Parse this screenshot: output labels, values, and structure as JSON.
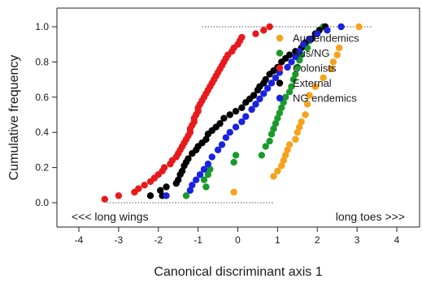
{
  "chart_data": {
    "type": "scatter",
    "title": "",
    "xlabel": "Canonical discriminant axis 1",
    "ylabel": "Cumulative frequency",
    "xlim": [
      -4,
      4
    ],
    "ylim": [
      0,
      1.0
    ],
    "xticks": [
      "-4",
      "-3",
      "-2",
      "-1",
      "0",
      "1",
      "2",
      "3",
      "4"
    ],
    "yticks": [
      "0.0",
      "0.2",
      "0.4",
      "0.6",
      "0.8",
      "1.0"
    ],
    "grid": false,
    "legend_position": "top-right",
    "annotations": {
      "left": "<<< long wings",
      "right": "long toes >>>"
    },
    "reference_lines": [
      {
        "y": 0.0,
        "x_start": -3.3,
        "x_end": 0.9
      },
      {
        "y": 1.0,
        "x_start": -0.9,
        "x_end": 3.4
      }
    ],
    "series": [
      {
        "name": "Aus endemics",
        "color": "#f7a21b",
        "points": [
          [
            -0.1,
            0.06
          ],
          [
            0.9,
            0.15
          ],
          [
            1.0,
            0.18
          ],
          [
            1.1,
            0.21
          ],
          [
            1.15,
            0.24
          ],
          [
            1.2,
            0.27
          ],
          [
            1.25,
            0.3
          ],
          [
            1.3,
            0.33
          ],
          [
            1.45,
            0.36
          ],
          [
            1.5,
            0.4
          ],
          [
            1.55,
            0.43
          ],
          [
            1.6,
            0.46
          ],
          [
            1.7,
            0.5
          ],
          [
            1.75,
            0.56
          ],
          [
            1.8,
            0.61
          ],
          [
            1.95,
            0.66
          ],
          [
            2.15,
            0.71
          ],
          [
            2.35,
            0.76
          ],
          [
            2.4,
            0.8
          ],
          [
            2.5,
            0.84
          ],
          [
            2.55,
            0.88
          ],
          [
            3.05,
            1.0
          ]
        ]
      },
      {
        "name": "Aus/NG",
        "color": "#1a9a2a",
        "points": [
          [
            -1.3,
            0.04
          ],
          [
            -0.8,
            0.09
          ],
          [
            -0.85,
            0.13
          ],
          [
            -0.75,
            0.16
          ],
          [
            -0.7,
            0.19
          ],
          [
            -0.1,
            0.23
          ],
          [
            -0.05,
            0.27
          ],
          [
            0.6,
            0.27
          ],
          [
            0.7,
            0.32
          ],
          [
            0.8,
            0.35
          ],
          [
            0.85,
            0.39
          ],
          [
            0.9,
            0.42
          ],
          [
            0.95,
            0.45
          ],
          [
            1.0,
            0.48
          ],
          [
            1.05,
            0.51
          ],
          [
            1.1,
            0.54
          ],
          [
            1.15,
            0.57
          ],
          [
            1.2,
            0.6
          ],
          [
            1.3,
            0.63
          ],
          [
            1.35,
            0.66
          ],
          [
            1.4,
            0.7
          ],
          [
            1.45,
            0.73
          ],
          [
            1.5,
            0.77
          ],
          [
            1.55,
            0.81
          ],
          [
            1.6,
            0.84
          ],
          [
            1.75,
            0.88
          ],
          [
            1.8,
            0.92
          ],
          [
            1.95,
            0.96
          ],
          [
            2.15,
            1.0
          ]
        ]
      },
      {
        "name": "Colonists",
        "color": "#e8191c",
        "points": [
          [
            -3.35,
            0.02
          ],
          [
            -3.0,
            0.04
          ],
          [
            -2.6,
            0.06
          ],
          [
            -2.5,
            0.08
          ],
          [
            -2.35,
            0.1
          ],
          [
            -2.2,
            0.12
          ],
          [
            -2.1,
            0.14
          ],
          [
            -2.0,
            0.16
          ],
          [
            -1.9,
            0.18
          ],
          [
            -1.85,
            0.2
          ],
          [
            -1.7,
            0.22
          ],
          [
            -1.65,
            0.24
          ],
          [
            -1.55,
            0.26
          ],
          [
            -1.5,
            0.28
          ],
          [
            -1.45,
            0.3
          ],
          [
            -1.4,
            0.32
          ],
          [
            -1.35,
            0.34
          ],
          [
            -1.3,
            0.36
          ],
          [
            -1.25,
            0.38
          ],
          [
            -1.2,
            0.4
          ],
          [
            -1.2,
            0.42
          ],
          [
            -1.15,
            0.44
          ],
          [
            -1.1,
            0.46
          ],
          [
            -1.1,
            0.48
          ],
          [
            -1.05,
            0.5
          ],
          [
            -1.0,
            0.52
          ],
          [
            -1.0,
            0.54
          ],
          [
            -0.95,
            0.56
          ],
          [
            -0.9,
            0.58
          ],
          [
            -0.85,
            0.6
          ],
          [
            -0.8,
            0.62
          ],
          [
            -0.75,
            0.64
          ],
          [
            -0.7,
            0.66
          ],
          [
            -0.65,
            0.68
          ],
          [
            -0.6,
            0.7
          ],
          [
            -0.55,
            0.72
          ],
          [
            -0.5,
            0.74
          ],
          [
            -0.45,
            0.76
          ],
          [
            -0.4,
            0.78
          ],
          [
            -0.35,
            0.8
          ],
          [
            -0.3,
            0.82
          ],
          [
            -0.25,
            0.84
          ],
          [
            -0.15,
            0.86
          ],
          [
            -0.1,
            0.88
          ],
          [
            0.0,
            0.9
          ],
          [
            0.05,
            0.92
          ],
          [
            0.1,
            0.94
          ],
          [
            0.45,
            0.96
          ],
          [
            0.65,
            0.98
          ],
          [
            0.8,
            1.0
          ]
        ]
      },
      {
        "name": "External",
        "color": "#000000",
        "points": [
          [
            -2.2,
            0.04
          ],
          [
            -1.95,
            0.07
          ],
          [
            -1.9,
            0.04
          ],
          [
            -1.8,
            0.09
          ],
          [
            -1.55,
            0.11
          ],
          [
            -1.5,
            0.13
          ],
          [
            -1.45,
            0.16
          ],
          [
            -1.4,
            0.18
          ],
          [
            -1.35,
            0.21
          ],
          [
            -1.3,
            0.23
          ],
          [
            -1.25,
            0.25
          ],
          [
            -1.15,
            0.28
          ],
          [
            -1.05,
            0.3
          ],
          [
            -1.0,
            0.32
          ],
          [
            -0.9,
            0.34
          ],
          [
            -0.8,
            0.36
          ],
          [
            -0.75,
            0.39
          ],
          [
            -0.65,
            0.41
          ],
          [
            -0.55,
            0.43
          ],
          [
            -0.45,
            0.45
          ],
          [
            -0.35,
            0.48
          ],
          [
            -0.2,
            0.5
          ],
          [
            -0.05,
            0.52
          ],
          [
            0.1,
            0.54
          ],
          [
            0.2,
            0.57
          ],
          [
            0.3,
            0.59
          ],
          [
            0.4,
            0.61
          ],
          [
            0.5,
            0.64
          ],
          [
            0.55,
            0.66
          ],
          [
            0.65,
            0.68
          ],
          [
            0.7,
            0.7
          ],
          [
            0.8,
            0.73
          ],
          [
            0.9,
            0.75
          ],
          [
            1.0,
            0.77
          ],
          [
            1.1,
            0.8
          ],
          [
            1.2,
            0.82
          ],
          [
            1.3,
            0.84
          ],
          [
            1.45,
            0.86
          ],
          [
            1.6,
            0.88
          ],
          [
            1.7,
            0.91
          ],
          [
            1.85,
            0.93
          ],
          [
            1.95,
            0.96
          ],
          [
            2.05,
            0.98
          ],
          [
            2.2,
            1.0
          ]
        ]
      },
      {
        "name": "NG endemics",
        "color": "#1a22e0",
        "points": [
          [
            -1.8,
            0.04
          ],
          [
            -1.2,
            0.07
          ],
          [
            -1.15,
            0.1
          ],
          [
            -1.05,
            0.13
          ],
          [
            -0.95,
            0.16
          ],
          [
            -0.85,
            0.19
          ],
          [
            -0.75,
            0.22
          ],
          [
            -0.65,
            0.26
          ],
          [
            -0.5,
            0.3
          ],
          [
            -0.4,
            0.33
          ],
          [
            -0.3,
            0.37
          ],
          [
            -0.2,
            0.4
          ],
          [
            -0.05,
            0.43
          ],
          [
            0.1,
            0.46
          ],
          [
            0.2,
            0.49
          ],
          [
            0.35,
            0.53
          ],
          [
            0.45,
            0.56
          ],
          [
            0.55,
            0.59
          ],
          [
            0.65,
            0.62
          ],
          [
            0.75,
            0.65
          ],
          [
            0.85,
            0.68
          ],
          [
            0.95,
            0.71
          ],
          [
            1.05,
            0.74
          ],
          [
            1.25,
            0.77
          ],
          [
            1.35,
            0.8
          ],
          [
            1.45,
            0.83
          ],
          [
            1.55,
            0.86
          ],
          [
            1.65,
            0.9
          ],
          [
            1.8,
            0.93
          ],
          [
            2.0,
            0.96
          ],
          [
            2.25,
            0.98
          ],
          [
            2.6,
            1.0
          ]
        ]
      }
    ]
  }
}
